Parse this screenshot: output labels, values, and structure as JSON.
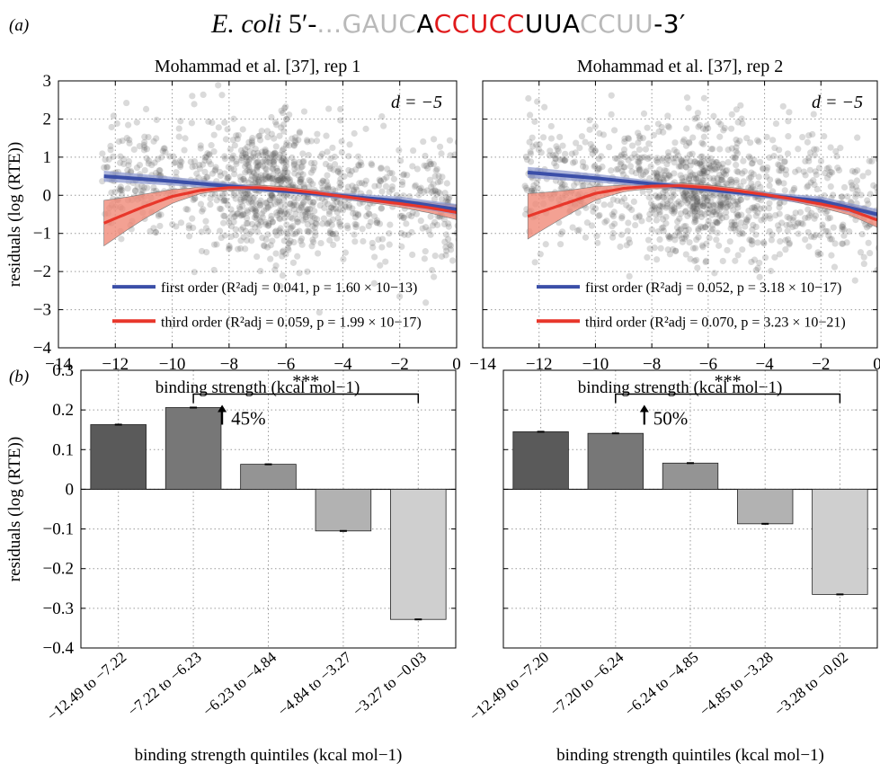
{
  "figure_title": {
    "panel_label": "(a)",
    "organism": "E. coli",
    "prefix": " 5′-",
    "sequence_parts": [
      {
        "text": "...GAUC",
        "color": "#b9b9b9"
      },
      {
        "text": "A",
        "color": "#000000"
      },
      {
        "text": "CCUCC",
        "color": "#e0191b"
      },
      {
        "text": "UUA",
        "color": "#000000"
      },
      {
        "text": "CCUU",
        "color": "#b9b9b9"
      },
      {
        "text": "-3′",
        "color": "#000000"
      }
    ]
  },
  "colors": {
    "first_order": "#3b4fa8",
    "third_order": "#e8372b",
    "third_band": "#f08a78",
    "first_band": "#8a95cc",
    "scatter": "#555555",
    "bars": [
      "#5a5a5a",
      "#777777",
      "#949494",
      "#b2b2b2",
      "#cfcfcf"
    ]
  },
  "panel_b_label": "(b)",
  "chart_data": [
    {
      "type": "scatter",
      "title": "Mohammad et al. [37], rep 1",
      "annotation": "d = −5",
      "xlabel": "binding strength (kcal mol−1)",
      "ylabel": "residuals (log (RTE))",
      "xlim": [
        -14,
        0
      ],
      "ylim": [
        -4,
        3
      ],
      "xticks": [
        -14,
        -12,
        -10,
        -8,
        -6,
        -4,
        -2,
        0
      ],
      "yticks": [
        -4,
        -3,
        -2,
        -1,
        0,
        1,
        2,
        3
      ],
      "grid": true,
      "series": [
        {
          "name": "first order (R²adj = 0.041, p = 1.60 × 10−13)",
          "x": [
            -12.4,
            -10,
            -8,
            -6,
            -4,
            -2,
            0
          ],
          "y": [
            0.5,
            0.37,
            0.24,
            0.11,
            -0.02,
            -0.15,
            -0.37
          ]
        },
        {
          "name": "third order (R²adj = 0.059, p = 1.99 × 10−17)",
          "x": [
            -12.4,
            -11,
            -10,
            -9,
            -8,
            -7,
            -6,
            -5,
            -4,
            -3,
            -2,
            -1,
            0
          ],
          "y": [
            -0.73,
            -0.3,
            -0.03,
            0.13,
            0.2,
            0.2,
            0.15,
            0.07,
            -0.03,
            -0.13,
            -0.22,
            -0.32,
            -0.45
          ]
        }
      ],
      "legend_position": "bottom"
    },
    {
      "type": "scatter",
      "title": "Mohammad et al. [37], rep 2",
      "annotation": "d = −5",
      "xlabel": "binding strength (kcal mol−1)",
      "ylabel": "",
      "xlim": [
        -14,
        0
      ],
      "ylim": [
        -4,
        3
      ],
      "xticks": [
        -14,
        -12,
        -10,
        -8,
        -6,
        -4,
        -2,
        0
      ],
      "yticks": [
        -4,
        -3,
        -2,
        -1,
        0,
        1,
        2,
        3
      ],
      "grid": true,
      "series": [
        {
          "name": "first order (R²adj = 0.052, p = 3.18 × 10−17)",
          "x": [
            -12.4,
            -10,
            -8,
            -6,
            -4,
            -2,
            0
          ],
          "y": [
            0.6,
            0.45,
            0.3,
            0.15,
            0.0,
            -0.15,
            -0.5
          ]
        },
        {
          "name": "third order (R²adj = 0.070, p = 3.23 × 10−21)",
          "x": [
            -12.4,
            -11,
            -10,
            -9,
            -8,
            -7,
            -6,
            -5,
            -4,
            -3,
            -2,
            -1,
            0
          ],
          "y": [
            -0.55,
            -0.2,
            0.05,
            0.18,
            0.24,
            0.25,
            0.2,
            0.12,
            0.02,
            -0.1,
            -0.23,
            -0.38,
            -0.65
          ]
        }
      ],
      "legend_position": "bottom"
    },
    {
      "type": "bar",
      "title": "",
      "xlabel": "binding strength quintiles (kcal mol−1)",
      "ylabel": "residuals (log (RTE))",
      "ylim": [
        -0.4,
        0.3
      ],
      "yticks": [
        -0.4,
        -0.3,
        -0.2,
        -0.1,
        0,
        0.1,
        0.2,
        0.3
      ],
      "categories": [
        "−12.49 to −7.22",
        "−7.22 to −6.23",
        "−6.23 to −4.84",
        "−4.84 to −3.27",
        "−3.27 to −0.03"
      ],
      "values": [
        0.163,
        0.206,
        0.063,
        -0.105,
        -0.328
      ],
      "significance": {
        "from": 1,
        "to": 4,
        "label": "***",
        "increase": "45%"
      },
      "grid": true
    },
    {
      "type": "bar",
      "title": "",
      "xlabel": "binding strength quintiles (kcal mol−1)",
      "ylabel": "",
      "ylim": [
        -0.4,
        0.3
      ],
      "yticks": [
        -0.4,
        -0.3,
        -0.2,
        -0.1,
        0,
        0.1,
        0.2,
        0.3
      ],
      "categories": [
        "−12.49 to −7.20",
        "−7.20 to −6.24",
        "−6.24 to −4.85",
        "−4.85 to −3.28",
        "−3.28 to −0.02"
      ],
      "values": [
        0.145,
        0.141,
        0.066,
        -0.087,
        -0.265
      ],
      "significance": {
        "from": 1,
        "to": 4,
        "label": "***",
        "increase": "50%"
      },
      "grid": true
    }
  ]
}
